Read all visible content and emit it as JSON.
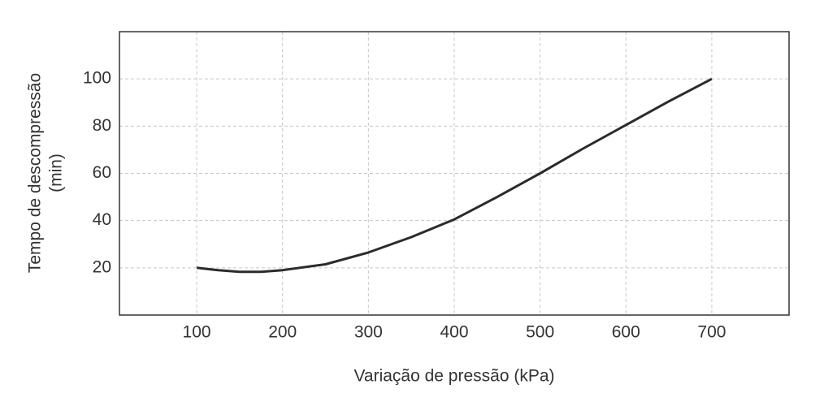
{
  "chart_data": {
    "type": "line",
    "x_label": "Variação de pressão (kPa)",
    "y_label": [
      "Tempo de descompressão",
      "(min)"
    ],
    "x": [
      100,
      125,
      150,
      175,
      200,
      250,
      300,
      350,
      400,
      450,
      500,
      550,
      600,
      650,
      700
    ],
    "series": [
      {
        "color": "#2b2b2b",
        "values": [
          20,
          19,
          18.3,
          18.3,
          19,
          21.5,
          26.5,
          33,
          40.5,
          50,
          60,
          70.5,
          80.5,
          90.5,
          100
        ]
      }
    ],
    "xlim": [
      10,
      790
    ],
    "xticks": [
      100,
      200,
      300,
      400,
      500,
      600,
      700
    ],
    "ylim": [
      0,
      120
    ],
    "yticks": [
      20,
      40,
      60,
      80,
      100
    ],
    "grid": true
  }
}
